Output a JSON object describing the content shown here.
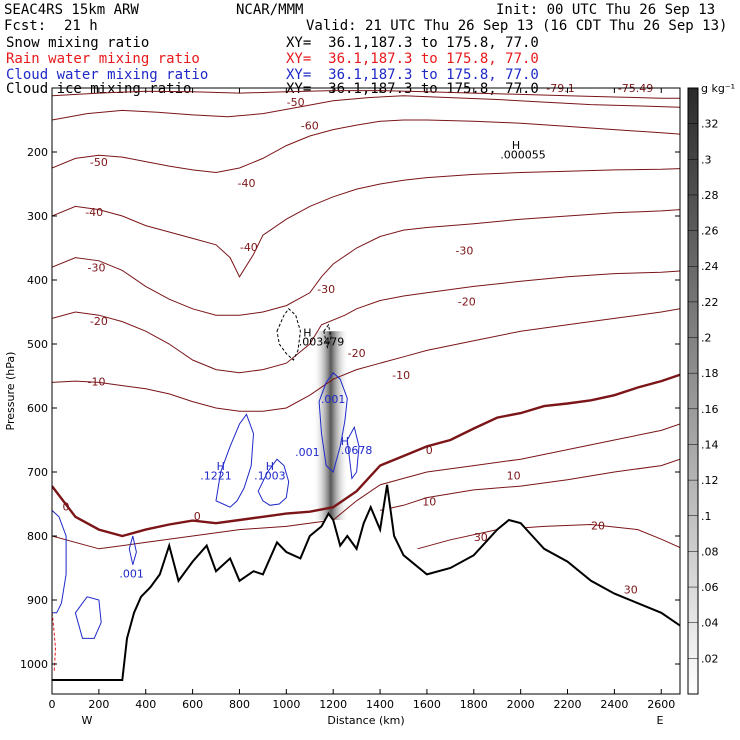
{
  "header": {
    "model": "SEAC4RS 15km ARW",
    "center": "NCAR/MMM",
    "init": "Init: 00 UTC Thu 26 Sep 13",
    "fcst_label": "Fcst:",
    "fcst_value": "21 h",
    "valid": "Valid: 21 UTC Thu 26 Sep 13 (16 CDT Thu 26 Sep 13)"
  },
  "fields": [
    {
      "name": "Snow mixing ratio",
      "xy": "XY=  36.1,187.3 to 175.8, 77.0",
      "color": "#000000"
    },
    {
      "name": "Rain water mixing ratio",
      "xy": "XY=  36.1,187.3 to 175.8, 77.0",
      "color": "#e8191c"
    },
    {
      "name": "Cloud water mixing ratio",
      "xy": "XY=  36.1,187.3 to 175.8, 77.0",
      "color": "#1f29c8"
    },
    {
      "name": "Cloud ice mixing ratio",
      "xy": "XY=  36.1,187.3 to 175.8, 77.0",
      "color": "#000000"
    }
  ],
  "chart_data": {
    "type": "cross-section",
    "xlabel": "Distance (km)",
    "ylabel": "Pressure (hPa)",
    "xlim": [
      0,
      2680
    ],
    "ylim": [
      1050,
      100
    ],
    "x_ticks": [
      0,
      200,
      400,
      600,
      800,
      1000,
      1200,
      1400,
      1600,
      1800,
      2000,
      2200,
      2400,
      2600
    ],
    "y_ticks": [
      200,
      300,
      400,
      500,
      600,
      700,
      800,
      900,
      1000
    ],
    "left_end": "W",
    "right_end": "E",
    "colorbar": {
      "unit": "g kg⁻¹",
      "labels": [
        ".02",
        ".04",
        ".06",
        ".08",
        ".1",
        ".12",
        ".14",
        ".16",
        ".18",
        ".2",
        ".22",
        ".24",
        ".26",
        ".28",
        ".3",
        ".32"
      ]
    },
    "terrain": {
      "x": [
        0,
        300,
        320,
        350,
        380,
        420,
        460,
        500,
        540,
        600,
        660,
        700,
        760,
        800,
        860,
        900,
        960,
        1000,
        1060,
        1100,
        1150,
        1180,
        1200,
        1230,
        1260,
        1300,
        1330,
        1360,
        1400,
        1430,
        1460,
        1500,
        1600,
        1700,
        1800,
        1900,
        1950,
        2000,
        2050,
        2100,
        2200,
        2300,
        2400,
        2500,
        2600,
        2680
      ],
      "y": [
        1025,
        1025,
        960,
        920,
        895,
        880,
        860,
        815,
        870,
        840,
        815,
        855,
        835,
        870,
        855,
        860,
        810,
        825,
        835,
        800,
        785,
        765,
        775,
        815,
        800,
        820,
        780,
        755,
        790,
        720,
        800,
        830,
        860,
        850,
        830,
        790,
        775,
        780,
        800,
        820,
        840,
        870,
        890,
        905,
        920,
        940
      ]
    },
    "temperature_contours": [
      {
        "level": 0,
        "bold": true,
        "x": [
          0,
          100,
          200,
          300,
          400,
          500,
          600,
          700,
          800,
          900,
          1000,
          1100,
          1200,
          1300,
          1400,
          1500,
          1600,
          1700,
          1800,
          1900,
          2000,
          2100,
          2200,
          2300,
          2400,
          2500,
          2600,
          2680
        ],
        "y": [
          722,
          770,
          790,
          800,
          790,
          782,
          776,
          780,
          775,
          770,
          765,
          762,
          755,
          730,
          690,
          675,
          660,
          650,
          632,
          615,
          608,
          597,
          593,
          588,
          580,
          568,
          558,
          548
        ]
      },
      {
        "level": 10,
        "bold": false,
        "x": [
          0,
          200,
          400,
          600,
          800,
          1000,
          1200,
          1300,
          1400,
          1500,
          1600,
          1800,
          2000,
          2200,
          2400,
          2600,
          2680
        ],
        "y": [
          800,
          820,
          810,
          800,
          790,
          785,
          775,
          745,
          720,
          710,
          700,
          690,
          680,
          665,
          650,
          635,
          625
        ]
      },
      {
        "level": 20,
        "bold": false,
        "x": [
          1400,
          1500,
          1600,
          1800,
          2000,
          2200,
          2400,
          2600,
          2680
        ],
        "y": [
          760,
          752,
          740,
          728,
          722,
          712,
          700,
          690,
          680
        ]
      },
      {
        "level": 30,
        "bold": false,
        "x": [
          1560,
          1700,
          1900,
          2100,
          2300,
          2500,
          2600,
          2680
        ],
        "y": [
          820,
          806,
          790,
          785,
          782,
          790,
          805,
          818
        ]
      },
      {
        "level": -10,
        "bold": false,
        "x": [
          0,
          100,
          200,
          300,
          400,
          500,
          600,
          700,
          800,
          900,
          1000,
          1100,
          1200,
          1300,
          1400,
          1500,
          1600,
          1800,
          2000,
          2200,
          2400,
          2600,
          2680
        ],
        "y": [
          560,
          558,
          560,
          565,
          570,
          578,
          590,
          600,
          605,
          605,
          600,
          580,
          555,
          540,
          530,
          520,
          510,
          495,
          480,
          470,
          460,
          450,
          445
        ]
      },
      {
        "level": -20,
        "bold": false,
        "x": [
          0,
          100,
          200,
          300,
          400,
          500,
          600,
          700,
          800,
          900,
          1000,
          1100,
          1150,
          1250,
          1300,
          1400,
          1500,
          1600,
          1800,
          2000,
          2200,
          2400,
          2600,
          2680
        ],
        "y": [
          460,
          450,
          455,
          465,
          480,
          500,
          525,
          540,
          545,
          540,
          530,
          500,
          470,
          455,
          445,
          432,
          425,
          420,
          410,
          402,
          395,
          390,
          388,
          386
        ]
      },
      {
        "level": -30,
        "bold": false,
        "x": [
          0,
          100,
          200,
          300,
          400,
          500,
          600,
          700,
          800,
          900,
          1000,
          1100,
          1150,
          1200,
          1300,
          1400,
          1500,
          1600,
          1800,
          2000,
          2200,
          2400,
          2600,
          2680
        ],
        "y": [
          380,
          365,
          370,
          385,
          410,
          430,
          445,
          455,
          455,
          450,
          440,
          420,
          395,
          375,
          350,
          332,
          322,
          318,
          312,
          305,
          300,
          295,
          292,
          290
        ]
      },
      {
        "level": -40,
        "bold": false,
        "x": [
          0,
          100,
          200,
          300,
          400,
          500,
          600,
          700,
          760,
          800,
          860,
          900,
          1000,
          1100,
          1200,
          1300,
          1400,
          1500,
          1600,
          1800,
          2000,
          2200,
          2400,
          2600,
          2680
        ],
        "y": [
          300,
          285,
          290,
          300,
          315,
          325,
          335,
          345,
          365,
          395,
          360,
          330,
          305,
          285,
          270,
          258,
          250,
          244,
          240,
          235,
          232,
          230,
          228,
          227,
          226
        ]
      },
      {
        "level": -50,
        "bold": false,
        "x": [
          0,
          100,
          200,
          300,
          400,
          500,
          600,
          700,
          800,
          900,
          1000,
          1100,
          1200,
          1300,
          1400,
          1500,
          1600,
          1800,
          2000,
          2200,
          2400,
          2600,
          2680
        ],
        "y": [
          225,
          210,
          205,
          208,
          215,
          222,
          228,
          232,
          225,
          210,
          190,
          175,
          165,
          158,
          152,
          150,
          150,
          152,
          155,
          160,
          165,
          170,
          172
        ]
      },
      {
        "level": -60,
        "bold": false,
        "x": [
          0,
          150,
          300,
          450,
          600,
          750,
          900,
          1050,
          1200,
          1350,
          1500,
          1700,
          1900,
          2100,
          2300,
          2500,
          2680
        ],
        "y": [
          150,
          140,
          135,
          138,
          142,
          145,
          140,
          130,
          120,
          115,
          112,
          115,
          118,
          122,
          126,
          128,
          130
        ]
      },
      {
        "level": -70,
        "bold": false,
        "x": [
          0,
          200,
          400,
          600,
          800,
          1000,
          1200,
          1400,
          1600,
          1800,
          2000,
          2200,
          2400,
          2600,
          2680
        ],
        "y": [
          112,
          108,
          105,
          106,
          108,
          106,
          104,
          104,
          106,
          108,
          110,
          112,
          114,
          116,
          116
        ]
      }
    ],
    "contour_labels": [
      {
        "text": "-50",
        "x": 1040,
        "y": 128,
        "color": "#7b1518"
      },
      {
        "text": "-50",
        "x": 200,
        "y": 222,
        "color": "#7b1518"
      },
      {
        "text": "-40",
        "x": 830,
        "y": 255,
        "color": "#7b1518"
      },
      {
        "text": "-40",
        "x": 180,
        "y": 300,
        "color": "#7b1518"
      },
      {
        "text": "-40",
        "x": 840,
        "y": 355,
        "color": "#7b1518"
      },
      {
        "text": "-30",
        "x": 1760,
        "y": 360,
        "color": "#7b1518"
      },
      {
        "text": "-30",
        "x": 190,
        "y": 387,
        "color": "#7b1518"
      },
      {
        "text": "-30",
        "x": 1170,
        "y": 420,
        "color": "#7b1518"
      },
      {
        "text": "-20",
        "x": 200,
        "y": 470,
        "color": "#7b1518"
      },
      {
        "text": "-20",
        "x": 1770,
        "y": 440,
        "color": "#7b1518"
      },
      {
        "text": "-20",
        "x": 1300,
        "y": 520,
        "color": "#7b1518"
      },
      {
        "text": "-10",
        "x": 190,
        "y": 565,
        "color": "#7b1518"
      },
      {
        "text": "-10",
        "x": 1490,
        "y": 555,
        "color": "#7b1518"
      },
      {
        "text": "0",
        "x": 60,
        "y": 760,
        "color": "#7b1518"
      },
      {
        "text": "0",
        "x": 620,
        "y": 775,
        "color": "#7b1518"
      },
      {
        "text": "0",
        "x": 1610,
        "y": 672,
        "color": "#7b1518"
      },
      {
        "text": "10",
        "x": 1610,
        "y": 752,
        "color": "#7b1518"
      },
      {
        "text": "10",
        "x": 1970,
        "y": 712,
        "color": "#7b1518"
      },
      {
        "text": "20",
        "x": 2330,
        "y": 790,
        "color": "#7b1518"
      },
      {
        "text": "30",
        "x": 1830,
        "y": 808,
        "color": "#7b1518"
      },
      {
        "text": "30",
        "x": 2470,
        "y": 890,
        "color": "#7b1518"
      },
      {
        "text": "-60",
        "x": 1100,
        "y": 165,
        "color": "#7b1518"
      },
      {
        "text": "-79.1",
        "x": 2170,
        "y": 106,
        "color": "#7b1518"
      },
      {
        "text": "-75.49",
        "x": 2490,
        "y": 106,
        "color": "#7b1518"
      }
    ],
    "max_labels": [
      {
        "text": "H",
        "x": 1980,
        "y": 195,
        "color": "#000000"
      },
      {
        "text": ".000055",
        "x": 2010,
        "y": 210,
        "color": "#000000"
      },
      {
        "text": "H",
        "x": 1090,
        "y": 488,
        "color": "#000000"
      },
      {
        "text": ".003479",
        "x": 1150,
        "y": 502,
        "color": "#000000"
      },
      {
        "text": ".001",
        "x": 1200,
        "y": 592,
        "color": "#1f29c8"
      },
      {
        "text": "H",
        "x": 1250,
        "y": 658,
        "color": "#1f29c8"
      },
      {
        "text": ".0678",
        "x": 1300,
        "y": 672,
        "color": "#1f29c8"
      },
      {
        "text": ".001",
        "x": 1090,
        "y": 675,
        "color": "#1f29c8"
      },
      {
        "text": "H",
        "x": 720,
        "y": 697,
        "color": "#1f29c8"
      },
      {
        "text": ".1221",
        "x": 700,
        "y": 712,
        "color": "#1f29c8"
      },
      {
        "text": "H",
        "x": 930,
        "y": 697,
        "color": "#1f29c8"
      },
      {
        "text": ".1003",
        "x": 930,
        "y": 712,
        "color": "#1f29c8"
      },
      {
        "text": ".001",
        "x": 340,
        "y": 865,
        "color": "#1f29c8"
      }
    ],
    "cloud_water_contours": [
      {
        "x": [
          700,
          720,
          760,
          800,
          830,
          860,
          850,
          820,
          790,
          760,
          730,
          700
        ],
        "y": [
          745,
          700,
          660,
          625,
          610,
          640,
          690,
          725,
          745,
          755,
          750,
          745
        ]
      },
      {
        "x": [
          880,
          920,
          960,
          990,
          1010,
          1000,
          970,
          930,
          900,
          880
        ],
        "y": [
          730,
          700,
          680,
          690,
          715,
          740,
          750,
          752,
          745,
          730
        ]
      },
      {
        "x": [
          1140,
          1170,
          1200,
          1230,
          1260,
          1250,
          1230,
          1200,
          1170,
          1150,
          1140
        ],
        "y": [
          590,
          560,
          545,
          555,
          585,
          620,
          660,
          700,
          690,
          640,
          590
        ]
      },
      {
        "x": [
          1260,
          1290,
          1310,
          1300,
          1280,
          1260
        ],
        "y": [
          650,
          630,
          660,
          700,
          710,
          650
        ]
      },
      {
        "x": [
          0,
          30,
          60,
          60,
          40,
          20,
          0
        ],
        "y": [
          760,
          770,
          800,
          860,
          905,
          920,
          920
        ]
      },
      {
        "x": [
          330,
          345,
          360,
          345,
          330
        ],
        "y": [
          820,
          800,
          825,
          845,
          820
        ]
      },
      {
        "x": [
          100,
          150,
          200,
          210,
          180,
          130,
          100
        ],
        "y": [
          920,
          895,
          900,
          935,
          960,
          960,
          920
        ]
      }
    ],
    "cloud_ice_contours": [
      {
        "x": [
          960,
          990,
          1010,
          1040,
          1060,
          1050,
          1030,
          1000,
          970,
          960
        ],
        "y": [
          480,
          455,
          445,
          455,
          480,
          510,
          525,
          515,
          500,
          480
        ]
      },
      {
        "x": [
          1160,
          1180,
          1190,
          1175,
          1160
        ],
        "y": [
          480,
          470,
          490,
          505,
          480
        ]
      }
    ],
    "rain_water_contours": [
      {
        "x": [
          0,
          5,
          15,
          10,
          0
        ],
        "y": [
          920,
          935,
          975,
          1010,
          1010
        ]
      }
    ],
    "shaded_column": {
      "x": 1190,
      "y_top": 480,
      "y_bottom": 775
    }
  }
}
